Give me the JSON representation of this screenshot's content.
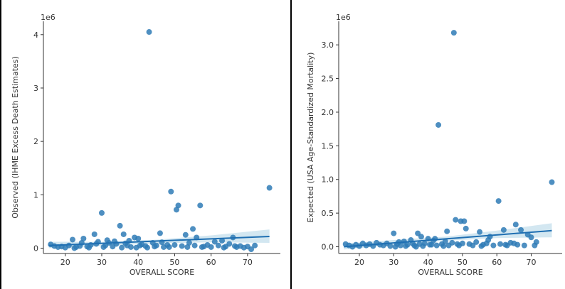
{
  "chart_data": [
    {
      "type": "scatter",
      "title": "",
      "xlabel": "OVERALL SCORE",
      "ylabel": "Observed (IHME Excess Death Estimates)",
      "y_offset_label": "1e6",
      "xlim": [
        14,
        79
      ],
      "ylim": [
        -0.1,
        4.25
      ],
      "xticks": [
        20,
        30,
        40,
        50,
        60,
        70
      ],
      "yticks": [
        0,
        1,
        2,
        3,
        4
      ],
      "ytick_labels": [
        "0",
        "1",
        "2",
        "3",
        "4"
      ],
      "grid": false,
      "regression": {
        "x0": 15.5,
        "y0": 0.05,
        "x1": 76,
        "y1": 0.22,
        "ci": [
          [
            15.5,
            0.0,
            0.12
          ],
          [
            30,
            0.04,
            0.12
          ],
          [
            45,
            0.09,
            0.16
          ],
          [
            60,
            0.11,
            0.24
          ],
          [
            76,
            0.1,
            0.35
          ]
        ]
      },
      "points": [
        [
          43,
          4.05
        ],
        [
          49,
          1.06
        ],
        [
          76,
          1.13
        ],
        [
          57,
          0.8
        ],
        [
          51,
          0.8
        ],
        [
          50.5,
          0.72
        ],
        [
          30,
          0.66
        ],
        [
          35,
          0.42
        ],
        [
          55,
          0.36
        ],
        [
          36,
          0.26
        ],
        [
          28,
          0.26
        ],
        [
          46,
          0.28
        ],
        [
          39,
          0.2
        ],
        [
          40,
          0.18
        ],
        [
          53,
          0.25
        ],
        [
          56,
          0.2
        ],
        [
          66,
          0.2
        ],
        [
          72,
          0.05
        ],
        [
          61,
          0.12
        ],
        [
          63,
          0.14
        ],
        [
          22,
          0.16
        ],
        [
          25,
          0.18
        ],
        [
          16,
          0.07
        ],
        [
          17,
          0.04
        ],
        [
          18,
          0.02
        ],
        [
          19,
          0.03
        ],
        [
          20,
          0.01
        ],
        [
          21,
          0.05
        ],
        [
          23,
          0.02
        ],
        [
          24,
          0.04
        ],
        [
          26,
          0.03
        ],
        [
          27,
          0.06
        ],
        [
          29,
          0.12
        ],
        [
          31,
          0.05
        ],
        [
          32,
          0.1
        ],
        [
          33,
          0.03
        ],
        [
          34,
          0.08
        ],
        [
          37,
          0.05
        ],
        [
          38,
          0.02
        ],
        [
          41,
          0.07
        ],
        [
          42,
          0.04
        ],
        [
          44,
          0.1
        ],
        [
          45,
          0.05
        ],
        [
          47,
          0.02
        ],
        [
          48,
          0.06
        ],
        [
          52,
          0.04
        ],
        [
          54,
          0.1
        ],
        [
          58,
          0.03
        ],
        [
          59,
          0.06
        ],
        [
          60,
          0.02
        ],
        [
          62,
          0.05
        ],
        [
          64,
          0.03
        ],
        [
          65,
          0.08
        ],
        [
          67,
          0.02
        ],
        [
          68,
          0.04
        ],
        [
          70,
          0.03
        ],
        [
          71,
          -0.02
        ],
        [
          30.5,
          0.02
        ],
        [
          31.5,
          0.15
        ],
        [
          33.5,
          0.13
        ],
        [
          35.5,
          0.01
        ],
        [
          28.5,
          0.08
        ],
        [
          26.5,
          0.01
        ],
        [
          24.5,
          0.1
        ],
        [
          22.5,
          0.0
        ],
        [
          36.5,
          0.09
        ],
        [
          37.5,
          0.14
        ],
        [
          39.5,
          0.01
        ],
        [
          40.5,
          0.05
        ],
        [
          42.5,
          0.01
        ],
        [
          44.5,
          0.03
        ],
        [
          46.5,
          0.11
        ],
        [
          48.5,
          0.02
        ],
        [
          50,
          0.06
        ],
        [
          53.5,
          0.02
        ],
        [
          55.5,
          0.05
        ],
        [
          57.5,
          0.02
        ],
        [
          63.5,
          0.01
        ],
        [
          66.5,
          0.04
        ],
        [
          69,
          0.01
        ]
      ]
    },
    {
      "type": "scatter",
      "title": "",
      "xlabel": "OVERALL SCORE",
      "ylabel": "Expected (USA Age-Standardized Mortality)",
      "y_offset_label": "1e6",
      "xlim": [
        14,
        79
      ],
      "ylim": [
        -0.1,
        3.35
      ],
      "xticks": [
        20,
        30,
        40,
        50,
        60,
        70
      ],
      "yticks": [
        0.0,
        0.5,
        1.0,
        1.5,
        2.0,
        2.5,
        3.0
      ],
      "ytick_labels": [
        "0.0",
        "0.5",
        "1.0",
        "1.5",
        "2.0",
        "2.5",
        "3.0"
      ],
      "grid": false,
      "regression": {
        "x0": 15.5,
        "y0": 0.0,
        "x1": 76,
        "y1": 0.24,
        "ci": [
          [
            15.5,
            -0.04,
            0.05
          ],
          [
            30,
            0.03,
            0.1
          ],
          [
            45,
            0.09,
            0.15
          ],
          [
            60,
            0.13,
            0.24
          ],
          [
            76,
            0.14,
            0.35
          ]
        ]
      },
      "points": [
        [
          47.5,
          3.18
        ],
        [
          43,
          1.81
        ],
        [
          76,
          0.96
        ],
        [
          60.5,
          0.68
        ],
        [
          48,
          0.4
        ],
        [
          49.5,
          0.38
        ],
        [
          50.5,
          0.38
        ],
        [
          30,
          0.2
        ],
        [
          37,
          0.2
        ],
        [
          45.5,
          0.23
        ],
        [
          55,
          0.22
        ],
        [
          62,
          0.25
        ],
        [
          65.5,
          0.33
        ],
        [
          67,
          0.25
        ],
        [
          70,
          0.14
        ],
        [
          71.5,
          0.07
        ],
        [
          69,
          0.18
        ],
        [
          58,
          0.15
        ],
        [
          51,
          0.27
        ],
        [
          42,
          0.12
        ],
        [
          40,
          0.12
        ],
        [
          38,
          0.15
        ],
        [
          35,
          0.1
        ],
        [
          33,
          0.08
        ],
        [
          16,
          0.04
        ],
        [
          17,
          0.02
        ],
        [
          18,
          0.0
        ],
        [
          19,
          0.03
        ],
        [
          20,
          0.01
        ],
        [
          21,
          0.05
        ],
        [
          22,
          0.02
        ],
        [
          23,
          0.04
        ],
        [
          24,
          0.01
        ],
        [
          25,
          0.06
        ],
        [
          26,
          0.03
        ],
        [
          27,
          0.02
        ],
        [
          28,
          0.05
        ],
        [
          29,
          0.01
        ],
        [
          31,
          0.04
        ],
        [
          32,
          0.02
        ],
        [
          34,
          0.03
        ],
        [
          36,
          0.02
        ],
        [
          39,
          0.05
        ],
        [
          41,
          0.03
        ],
        [
          44,
          0.04
        ],
        [
          46,
          0.02
        ],
        [
          47,
          0.06
        ],
        [
          52,
          0.04
        ],
        [
          53,
          0.02
        ],
        [
          54,
          0.07
        ],
        [
          56,
          0.03
        ],
        [
          57,
          0.05
        ],
        [
          59,
          0.02
        ],
        [
          61,
          0.04
        ],
        [
          63,
          0.02
        ],
        [
          64,
          0.06
        ],
        [
          66,
          0.03
        ],
        [
          68,
          0.02
        ],
        [
          30.5,
          0.0
        ],
        [
          31.5,
          0.07
        ],
        [
          33.5,
          0.01
        ],
        [
          35.5,
          0.05
        ],
        [
          36.5,
          0.0
        ],
        [
          37.5,
          0.04
        ],
        [
          38.5,
          0.01
        ],
        [
          40.5,
          0.03
        ],
        [
          41.5,
          0.09
        ],
        [
          42.5,
          0.02
        ],
        [
          44.5,
          0.01
        ],
        [
          45,
          0.08
        ],
        [
          48.5,
          0.04
        ],
        [
          49,
          0.02
        ],
        [
          50,
          0.05
        ],
        [
          55.5,
          0.01
        ],
        [
          57.5,
          0.1
        ],
        [
          62.5,
          0.03
        ],
        [
          65,
          0.05
        ],
        [
          71,
          0.02
        ]
      ]
    }
  ]
}
